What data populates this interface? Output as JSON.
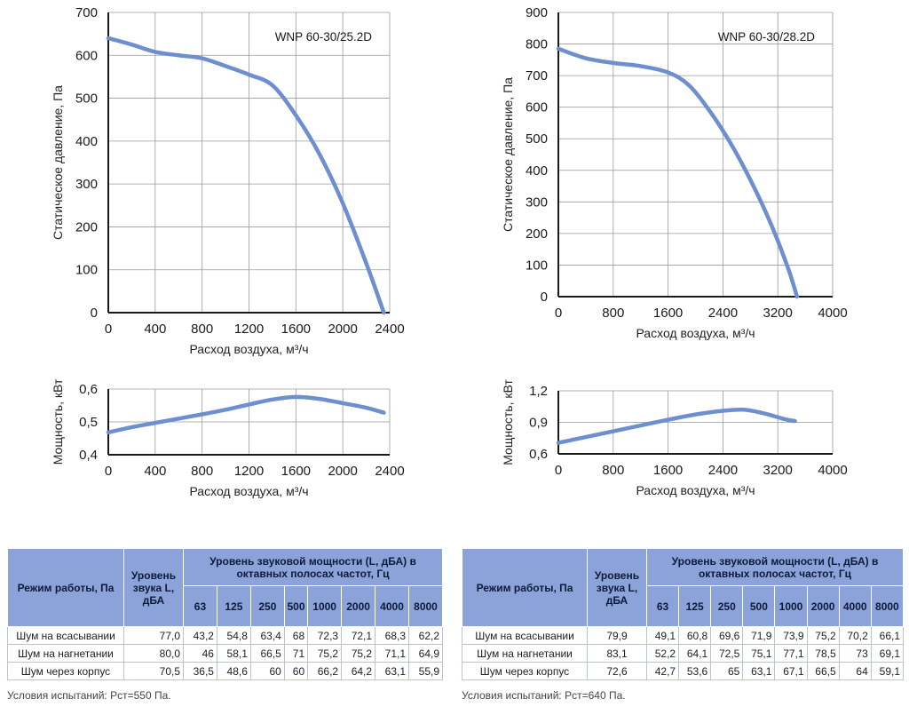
{
  "chart_data": [
    {
      "type": "line",
      "model": "WNP 60-30/25.2D",
      "xlabel": "Расход воздуха, м³/ч",
      "ylabel": "Статическое давление, Па",
      "xlim": [
        0,
        2400
      ],
      "ylim": [
        0,
        700
      ],
      "xticks": [
        0,
        400,
        800,
        1200,
        1600,
        2000,
        2400
      ],
      "yticks": [
        0,
        100,
        200,
        300,
        400,
        500,
        600,
        700
      ],
      "grid": true,
      "series": [
        {
          "x": [
            0,
            200,
            400,
            600,
            800,
            1000,
            1200,
            1400,
            1600,
            1800,
            2000,
            2200,
            2350
          ],
          "y": [
            640,
            625,
            608,
            600,
            593,
            575,
            555,
            530,
            460,
            370,
            255,
            115,
            0
          ]
        }
      ]
    },
    {
      "type": "line",
      "model": "WNP 60-30/28.2D",
      "xlabel": "Расход воздуха, м³/ч",
      "ylabel": "Статическое давление, Па",
      "xlim": [
        0,
        4000
      ],
      "ylim": [
        0,
        900
      ],
      "xticks": [
        0,
        800,
        1600,
        2400,
        3200,
        4000
      ],
      "yticks": [
        0,
        100,
        200,
        300,
        400,
        500,
        600,
        700,
        800,
        900
      ],
      "grid": true,
      "series": [
        {
          "x": [
            0,
            400,
            800,
            1200,
            1600,
            1900,
            2200,
            2500,
            2800,
            3100,
            3350,
            3480
          ],
          "y": [
            785,
            755,
            740,
            730,
            710,
            670,
            590,
            490,
            370,
            230,
            90,
            0
          ]
        }
      ]
    },
    {
      "type": "line",
      "xlabel": "Расход воздуха, м³/ч",
      "ylabel": "Мощность, кВт",
      "xlim": [
        0,
        2400
      ],
      "ylim": [
        0.4,
        0.6
      ],
      "xticks": [
        0,
        400,
        800,
        1200,
        1600,
        2000,
        2400
      ],
      "yticks": [
        "0,4",
        "0,5",
        "0,6"
      ],
      "grid": true,
      "series": [
        {
          "x": [
            0,
            200,
            400,
            600,
            800,
            1000,
            1200,
            1400,
            1600,
            1800,
            2000,
            2200,
            2350
          ],
          "y": [
            0.468,
            0.484,
            0.497,
            0.51,
            0.523,
            0.537,
            0.553,
            0.568,
            0.576,
            0.57,
            0.557,
            0.543,
            0.528
          ]
        }
      ]
    },
    {
      "type": "line",
      "xlabel": "Расход воздуха, м³/ч",
      "ylabel": "Мощность, кВт",
      "xlim": [
        0,
        4000
      ],
      "ylim": [
        0.6,
        1.2
      ],
      "xticks": [
        0,
        800,
        1600,
        2400,
        3200,
        4000
      ],
      "yticks": [
        "0,6",
        "0,9",
        "1,2"
      ],
      "grid": true,
      "series": [
        {
          "x": [
            0,
            400,
            800,
            1200,
            1600,
            2000,
            2400,
            2700,
            3000,
            3300,
            3450
          ],
          "y": [
            0.705,
            0.76,
            0.815,
            0.87,
            0.925,
            0.975,
            1.01,
            1.02,
            0.985,
            0.93,
            0.912
          ]
        }
      ]
    }
  ],
  "tables": [
    {
      "head": {
        "mode": "Режим работы, Па",
        "level": "Уровень звука L, дБА",
        "power": "Уровень звуковой мощности (L, дБА) в октавных полосах частот, Гц",
        "freqs": [
          "63",
          "125",
          "250",
          "500",
          "1000",
          "2000",
          "4000",
          "8000"
        ]
      },
      "rows": [
        {
          "name": "Шум на всасывании",
          "level": "77,0",
          "values": [
            "43,2",
            "54,8",
            "63,4",
            "68",
            "72,3",
            "72,1",
            "68,3",
            "62,2"
          ]
        },
        {
          "name": "Шум на нагнетании",
          "level": "80,0",
          "values": [
            "46",
            "58,1",
            "66,5",
            "71",
            "75,2",
            "75,2",
            "71,1",
            "64,9"
          ]
        },
        {
          "name": "Шум через корпус",
          "level": "70,5",
          "values": [
            "36,5",
            "48,6",
            "60",
            "60",
            "66,2",
            "64,2",
            "63,1",
            "55,9"
          ]
        }
      ],
      "note": "Условия испытаний: Рст=550 Па."
    },
    {
      "head": {
        "mode": "Режим работы, Па",
        "level": "Уровень звука L, дБА",
        "power": "Уровень звуковой мощности (L, дБА) в октавных полосах частот, Гц",
        "freqs": [
          "63",
          "125",
          "250",
          "500",
          "1000",
          "2000",
          "4000",
          "8000"
        ]
      },
      "rows": [
        {
          "name": "Шум на всасывании",
          "level": "79,9",
          "values": [
            "49,1",
            "60,8",
            "69,6",
            "71,9",
            "73,9",
            "75,2",
            "70,2",
            "66,1"
          ]
        },
        {
          "name": "Шум на нагнетании",
          "level": "83,1",
          "values": [
            "52,2",
            "64,1",
            "72,5",
            "75,1",
            "77,1",
            "78,5",
            "73",
            "69,1"
          ]
        },
        {
          "name": "Шум через корпус",
          "level": "72,6",
          "values": [
            "42,7",
            "53,6",
            "65",
            "63,1",
            "67,1",
            "66,5",
            "64",
            "59,1"
          ]
        }
      ],
      "note": "Условия испытаний: Рст=640 Па."
    }
  ]
}
